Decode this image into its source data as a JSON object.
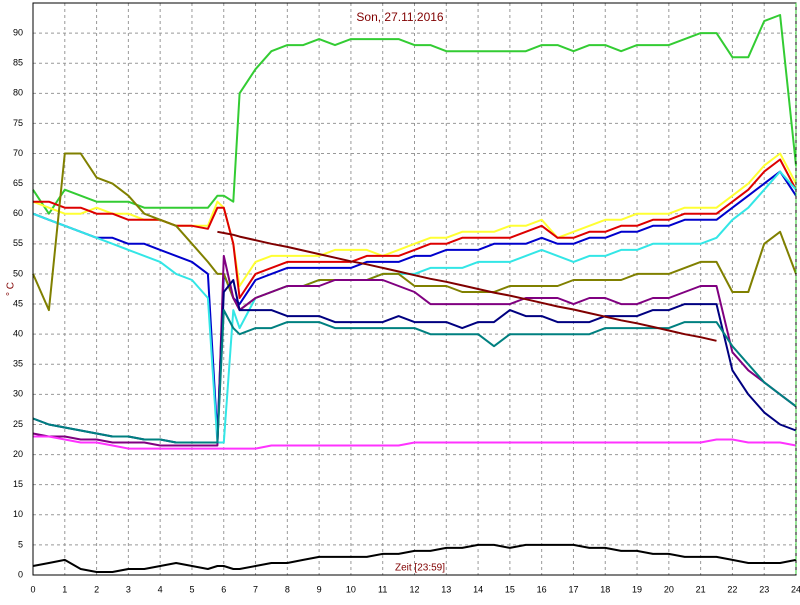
{
  "chart_data": {
    "type": "line",
    "title": "Son, 27.11.2016",
    "y_label": "° C",
    "x_label": "Zeit [23:59]",
    "x": [
      0,
      0.5,
      1,
      1.5,
      2,
      2.5,
      3,
      3.5,
      4,
      4.5,
      5,
      5.5,
      5.8,
      6,
      6.3,
      6.5,
      7,
      7.5,
      8,
      8.5,
      9,
      9.5,
      10,
      10.5,
      11,
      11.5,
      12,
      12.5,
      13,
      13.5,
      14,
      14.5,
      15,
      15.5,
      16,
      16.5,
      17,
      17.5,
      18,
      18.5,
      19,
      19.5,
      20,
      20.5,
      21,
      21.5,
      22,
      22.5,
      23,
      23.5,
      24
    ],
    "xlim": [
      0,
      24
    ],
    "xticks": [
      0,
      1,
      2,
      3,
      4,
      5,
      6,
      7,
      8,
      9,
      10,
      11,
      12,
      13,
      14,
      15,
      16,
      17,
      18,
      19,
      20,
      21,
      22,
      23,
      24
    ],
    "ylim": [
      0,
      95
    ],
    "yticks": [
      0,
      5,
      10,
      15,
      20,
      25,
      30,
      35,
      40,
      45,
      50,
      55,
      60,
      65,
      70,
      75,
      80,
      85,
      90
    ],
    "grid": true,
    "series": [
      {
        "color": "#33cc33",
        "values": [
          64,
          60,
          64,
          63,
          62,
          62,
          62,
          61,
          61,
          61,
          61,
          61,
          63,
          63,
          62,
          80,
          84,
          87,
          88,
          88,
          89,
          88,
          89,
          89,
          89,
          89,
          88,
          88,
          87,
          87,
          87,
          87,
          87,
          87,
          88,
          88,
          87,
          88,
          88,
          87,
          88,
          88,
          88,
          89,
          90,
          90,
          86,
          86,
          92,
          93,
          68
        ]
      },
      {
        "color": "#ffff33",
        "values": [
          62,
          61,
          60,
          60,
          61,
          60,
          60,
          59,
          59,
          58,
          58,
          58,
          62,
          61,
          55,
          48,
          52,
          53,
          53,
          53,
          53,
          54,
          54,
          54,
          53,
          54,
          55,
          56,
          56,
          57,
          57,
          57,
          58,
          58,
          59,
          56,
          57,
          58,
          59,
          59,
          60,
          60,
          60,
          61,
          61,
          61,
          63,
          65,
          68,
          70,
          65
        ]
      },
      {
        "color": "#dd0000",
        "values": [
          62,
          62,
          61,
          61,
          60,
          60,
          59,
          59,
          59,
          58,
          58,
          57.5,
          61,
          61,
          55,
          46,
          50,
          51,
          52,
          52,
          52,
          52,
          52,
          53,
          53,
          53,
          54,
          55,
          55,
          56,
          56,
          56,
          56,
          57,
          58,
          56,
          56,
          57,
          57,
          58,
          58,
          59,
          59,
          60,
          60,
          60,
          62,
          64,
          67,
          69,
          64
        ]
      },
      {
        "color": "#0000cc",
        "values": [
          60,
          59,
          58,
          57,
          56,
          56,
          55,
          55,
          54,
          53,
          52,
          50,
          23,
          50,
          46,
          45,
          49,
          50,
          51,
          51,
          51,
          51,
          51,
          52,
          52,
          52,
          53,
          53,
          54,
          54,
          54,
          55,
          55,
          55,
          56,
          55,
          55,
          56,
          56,
          57,
          57,
          58,
          58,
          59,
          59,
          59,
          61,
          63,
          65,
          67,
          63
        ]
      },
      {
        "color": "#33e6e6",
        "values": [
          60,
          59,
          58,
          57,
          56,
          55,
          54,
          53,
          52,
          50,
          49,
          46,
          22,
          22,
          44,
          41,
          46,
          47,
          48,
          48,
          49,
          49,
          49,
          49,
          50,
          50,
          50,
          51,
          51,
          51,
          52,
          52,
          52,
          53,
          54,
          53,
          52,
          53,
          53,
          54,
          54,
          55,
          55,
          55,
          55,
          56,
          59,
          61,
          64,
          67,
          64
        ]
      },
      {
        "color": "#808000",
        "values": [
          50,
          44,
          70,
          70,
          66,
          65,
          63,
          60,
          59,
          58,
          55,
          52,
          50,
          50,
          46,
          44,
          46,
          47,
          48,
          48,
          49,
          49,
          49,
          49,
          50,
          50,
          48,
          48,
          48,
          47,
          47,
          47,
          48,
          48,
          48,
          48,
          49,
          49,
          49,
          49,
          50,
          50,
          50,
          51,
          52,
          52,
          47,
          47,
          55,
          57,
          50
        ]
      },
      {
        "color": "#800080",
        "values": [
          23.5,
          23,
          23,
          22.5,
          22.5,
          22,
          22,
          22,
          21.5,
          21.5,
          21.5,
          21.5,
          21.5,
          53,
          46,
          44,
          46,
          47,
          48,
          48,
          48,
          49,
          49,
          49,
          49,
          48,
          47,
          45,
          45,
          45,
          45,
          45,
          45,
          46,
          46,
          46,
          45,
          46,
          46,
          45,
          45,
          46,
          46,
          47,
          48,
          48,
          37,
          34,
          32,
          30,
          28
        ]
      },
      {
        "color": "#000080",
        "values": [
          26,
          25,
          24.5,
          24,
          23.5,
          23,
          23,
          22.5,
          22.5,
          22,
          22,
          22,
          22,
          47,
          49,
          44,
          44,
          44,
          43,
          43,
          43,
          42,
          42,
          42,
          42,
          43,
          42,
          42,
          42,
          41,
          42,
          42,
          44,
          43,
          43,
          42,
          42,
          42,
          43,
          43,
          43,
          44,
          44,
          45,
          45,
          45,
          34,
          30,
          27,
          25,
          24
        ]
      },
      {
        "color": "#008080",
        "values": [
          26,
          25,
          24.5,
          24,
          23.5,
          23,
          23,
          22.5,
          22.5,
          22,
          22,
          22,
          22,
          44,
          41,
          40,
          41,
          41,
          42,
          42,
          42,
          41,
          41,
          41,
          41,
          41,
          41,
          40,
          40,
          40,
          40,
          38,
          40,
          40,
          40,
          40,
          40,
          40,
          41,
          41,
          41,
          41,
          41,
          42,
          42,
          42,
          38,
          35,
          32,
          30,
          28
        ]
      },
      {
        "color": "#800000",
        "values": [
          null,
          null,
          null,
          null,
          null,
          null,
          null,
          null,
          null,
          null,
          null,
          null,
          57,
          56.8,
          56.5,
          56.2,
          55.6,
          55,
          54.5,
          53.9,
          53.3,
          52.7,
          52.1,
          51.6,
          51,
          50.4,
          49.8,
          49.2,
          48.7,
          48.1,
          47.5,
          46.9,
          46.4,
          45.8,
          45.2,
          44.6,
          44.1,
          43.5,
          42.9,
          42.3,
          41.8,
          41.2,
          40.6,
          40,
          39.5,
          38.9,
          null,
          null,
          null,
          null,
          null
        ]
      },
      {
        "color": "#ff33ff",
        "values": [
          23,
          23,
          22.5,
          22,
          22,
          21.5,
          21,
          21,
          21,
          21,
          21,
          21,
          21,
          21,
          21,
          21,
          21,
          21.5,
          21.5,
          21.5,
          21.5,
          21.5,
          21.5,
          21.5,
          21.5,
          21.5,
          22,
          22,
          22,
          22,
          22,
          22,
          22,
          22,
          22,
          22,
          22,
          22,
          22,
          22,
          22,
          22,
          22,
          22,
          22,
          22.5,
          22.5,
          22,
          22,
          22,
          21.5
        ]
      },
      {
        "color": "#000000",
        "values": [
          1.5,
          2,
          2.5,
          1,
          0.5,
          0.5,
          1,
          1,
          1.5,
          2,
          1.5,
          1,
          1.5,
          1.5,
          1,
          1,
          1.5,
          2,
          2,
          2.5,
          3,
          3,
          3,
          3,
          3.5,
          3.5,
          4,
          4,
          4.5,
          4.5,
          5,
          5,
          4.5,
          5,
          5,
          5,
          5,
          4.5,
          4.5,
          4,
          4,
          3.5,
          3.5,
          3,
          3,
          3,
          2.5,
          2,
          2,
          2,
          2.5
        ]
      }
    ]
  }
}
